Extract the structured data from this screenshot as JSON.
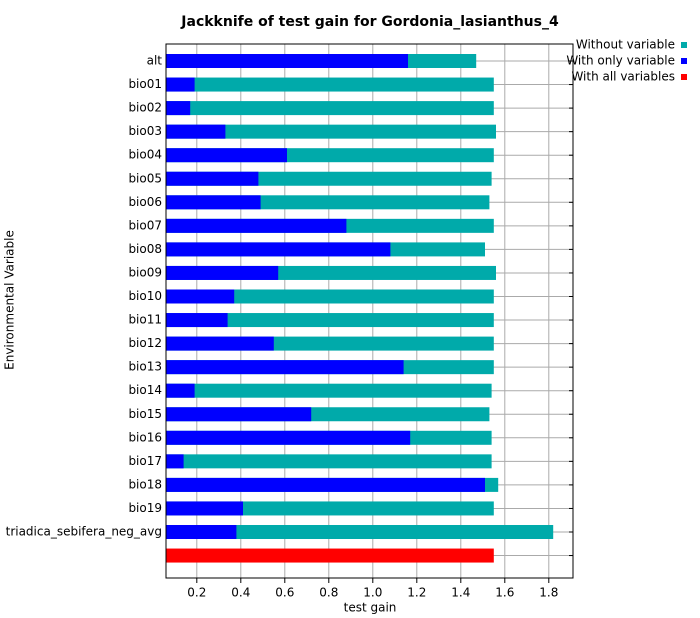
{
  "chart_data": {
    "type": "bar",
    "orientation": "horizontal",
    "title": "Jackknife of test gain for Gordonia_lasianthus_4",
    "x_label": "test gain",
    "y_label": "Environmental Variable",
    "categories": [
      "alt",
      "bio01",
      "bio02",
      "bio03",
      "bio04",
      "bio05",
      "bio06",
      "bio07",
      "bio08",
      "bio09",
      "bio10",
      "bio11",
      "bio12",
      "bio13",
      "bio14",
      "bio15",
      "bio16",
      "bio17",
      "bio18",
      "bio19",
      "triadica_sebifera_neg_avg",
      null
    ],
    "series": [
      {
        "name": "Without variable",
        "color": "#00aaaa",
        "values": [
          1.47,
          1.55,
          1.55,
          1.56,
          1.55,
          1.54,
          1.53,
          1.55,
          1.51,
          1.56,
          1.55,
          1.55,
          1.55,
          1.55,
          1.54,
          1.53,
          1.54,
          1.54,
          1.57,
          1.55,
          1.82,
          null
        ]
      },
      {
        "name": "With only variable",
        "color": "#0000ff",
        "values": [
          1.16,
          0.19,
          0.17,
          0.33,
          0.61,
          0.48,
          0.49,
          0.88,
          1.08,
          0.57,
          0.37,
          0.34,
          0.55,
          1.14,
          0.19,
          0.72,
          1.17,
          0.14,
          1.51,
          0.41,
          0.38,
          null
        ]
      },
      {
        "name": "With all variables",
        "color": "#ff0000",
        "values": [
          null,
          null,
          null,
          null,
          null,
          null,
          null,
          null,
          null,
          null,
          null,
          null,
          null,
          null,
          null,
          null,
          null,
          null,
          null,
          null,
          null,
          1.55
        ]
      }
    ],
    "xlim": [
      0.06,
      1.91
    ],
    "xticks": [
      0.2,
      0.4,
      0.6,
      0.8,
      {
        "value": 1,
        "label": "1.0"
      },
      1.2,
      1.4,
      1.6,
      1.8
    ],
    "grid": true,
    "legend": "top-right"
  }
}
